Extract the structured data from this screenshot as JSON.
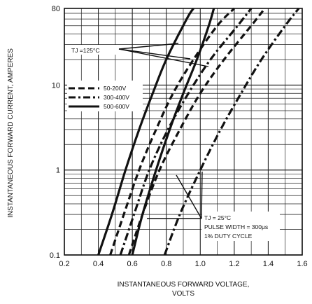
{
  "chart_data": {
    "type": "line",
    "xlabel_line1": "INSTANTANEOUS FORWARD VOLTAGE,",
    "xlabel_line2": "VOLTS",
    "ylabel": "INSTANTANEOUS FORWARD CURRENT, AMPERES",
    "x_scale": "linear",
    "y_scale": "log",
    "xlim": [
      0.2,
      1.6
    ],
    "ylim": [
      0.1,
      80
    ],
    "x_ticks": [
      "0.2",
      "0.4",
      "0.6",
      "0.8",
      "1.0",
      "1.2",
      "1.4",
      "1.6"
    ],
    "y_ticks": [
      "0.1",
      "1",
      "10",
      "80"
    ],
    "grid": true,
    "legend": {
      "placement": "left",
      "entries": [
        {
          "label": "50-200V",
          "style": "dashed"
        },
        {
          "label": "300-400V",
          "style": "dash-dot"
        },
        {
          "label": "500-600V",
          "style": "solid"
        }
      ]
    },
    "annotations": {
      "tj_hot": "TJ =125°C",
      "tj_cold_line1": "TJ = 25°C",
      "tj_cold_line2": "PULSE WIDTH = 300μs",
      "tj_cold_line3": "1% DUTY CYCLE"
    },
    "series": [
      {
        "label": "500-600V",
        "condition": "TJ =125°C",
        "style": "solid",
        "points": [
          [
            0.4,
            0.1
          ],
          [
            0.48,
            0.3
          ],
          [
            0.56,
            1
          ],
          [
            0.64,
            3
          ],
          [
            0.72,
            8
          ],
          [
            0.8,
            20
          ],
          [
            0.92,
            60
          ],
          [
            0.96,
            80
          ]
        ]
      },
      {
        "label": "500-600V",
        "condition": "TJ = 25°C",
        "style": "solid",
        "points": [
          [
            0.6,
            0.1
          ],
          [
            0.66,
            0.3
          ],
          [
            0.74,
            1
          ],
          [
            0.82,
            3
          ],
          [
            0.9,
            8
          ],
          [
            0.98,
            20
          ],
          [
            1.05,
            50
          ],
          [
            1.08,
            80
          ]
        ]
      },
      {
        "label": "50-200V",
        "condition": "TJ =125°C",
        "style": "dashed",
        "points": [
          [
            0.47,
            0.1
          ],
          [
            0.55,
            0.3
          ],
          [
            0.64,
            1
          ],
          [
            0.74,
            3
          ],
          [
            0.84,
            8
          ],
          [
            0.96,
            20
          ],
          [
            1.1,
            50
          ],
          [
            1.2,
            80
          ]
        ]
      },
      {
        "label": "50-200V",
        "condition": "TJ = 25°C",
        "style": "dashed",
        "points": [
          [
            0.58,
            0.1
          ],
          [
            0.66,
            0.3
          ],
          [
            0.76,
            1
          ],
          [
            0.88,
            3
          ],
          [
            1.0,
            8
          ],
          [
            1.14,
            20
          ],
          [
            1.3,
            50
          ],
          [
            1.38,
            80
          ]
        ]
      },
      {
        "label": "300-400V",
        "condition": "TJ =125°C",
        "style": "dash-dot",
        "points": [
          [
            0.53,
            0.1
          ],
          [
            0.61,
            0.3
          ],
          [
            0.7,
            1
          ],
          [
            0.81,
            3
          ],
          [
            0.93,
            8
          ],
          [
            1.06,
            20
          ],
          [
            1.22,
            50
          ],
          [
            1.3,
            80
          ]
        ]
      },
      {
        "label": "300-400V",
        "condition": "TJ = 25°C",
        "style": "dash-dot",
        "points": [
          [
            0.79,
            0.1
          ],
          [
            0.88,
            0.3
          ],
          [
            1.0,
            1
          ],
          [
            1.12,
            3
          ],
          [
            1.24,
            8
          ],
          [
            1.36,
            20
          ],
          [
            1.5,
            50
          ],
          [
            1.58,
            80
          ]
        ]
      }
    ]
  }
}
